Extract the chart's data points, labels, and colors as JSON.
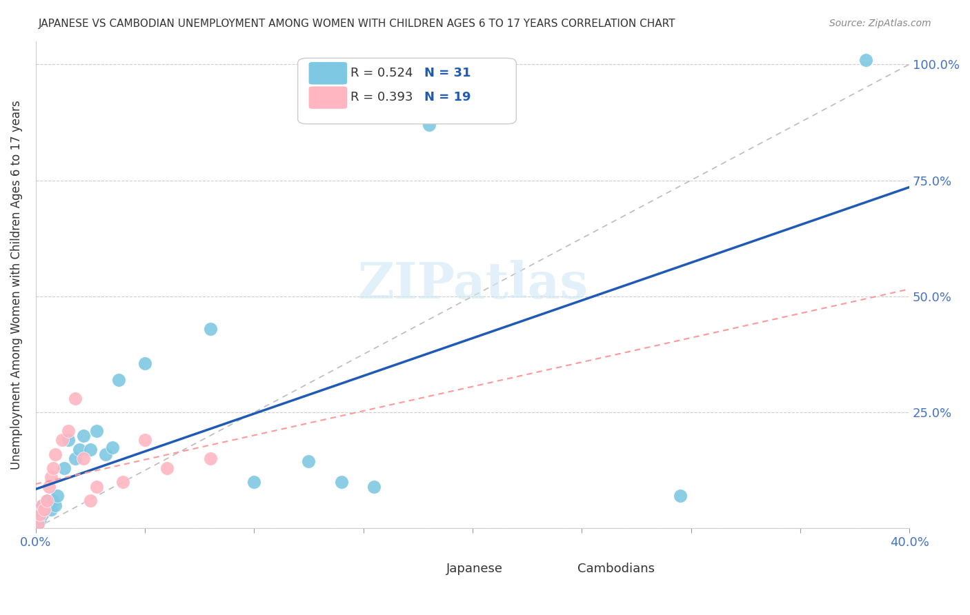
{
  "title": "JAPANESE VS CAMBODIAN UNEMPLOYMENT AMONG WOMEN WITH CHILDREN AGES 6 TO 17 YEARS CORRELATION CHART",
  "source": "Source: ZipAtlas.com",
  "xlabel_bottom": "",
  "ylabel": "Unemployment Among Women with Children Ages 6 to 17 years",
  "x_ticks": [
    0.0,
    0.05,
    0.1,
    0.15,
    0.2,
    0.25,
    0.3,
    0.35,
    0.4
  ],
  "x_tick_labels": [
    "0.0%",
    "",
    "",
    "",
    "",
    "",
    "",
    "",
    "40.0%"
  ],
  "y_ticks_right": [
    0.0,
    0.25,
    0.5,
    0.75,
    1.0
  ],
  "y_tick_labels_right": [
    "",
    "25.0%",
    "50.0%",
    "75.0%",
    "100.0%"
  ],
  "xlim": [
    0.0,
    0.4
  ],
  "ylim": [
    0.0,
    1.05
  ],
  "legend_r1": "R = 0.524",
  "legend_n1": "N = 31",
  "legend_r2": "R = 0.393",
  "legend_n2": "N = 19",
  "japanese_color": "#7EC8E3",
  "cambodian_color": "#FFB6C1",
  "japanese_color_dark": "#4472C4",
  "cambodian_color_dark": "#FF69B4",
  "trendline_blue": "#1F5BB5",
  "trendline_pink": "#FF9999",
  "watermark": "ZIPatlas",
  "japanese_x": [
    0.001,
    0.002,
    0.002,
    0.003,
    0.003,
    0.004,
    0.004,
    0.005,
    0.006,
    0.007,
    0.008,
    0.009,
    0.012,
    0.015,
    0.018,
    0.02,
    0.022,
    0.025,
    0.028,
    0.03,
    0.032,
    0.035,
    0.05,
    0.08,
    0.1,
    0.12,
    0.14,
    0.16,
    0.18,
    0.3,
    0.38
  ],
  "japanese_y": [
    0.01,
    0.02,
    0.03,
    0.04,
    0.02,
    0.05,
    0.03,
    0.06,
    0.05,
    0.04,
    0.06,
    0.05,
    0.12,
    0.18,
    0.14,
    0.16,
    0.19,
    0.17,
    0.2,
    0.17,
    0.15,
    0.3,
    0.35,
    0.42,
    0.1,
    0.14,
    0.1,
    0.09,
    0.85,
    0.07,
    1.01
  ],
  "cambodian_x": [
    0.001,
    0.002,
    0.003,
    0.004,
    0.005,
    0.006,
    0.007,
    0.008,
    0.009,
    0.012,
    0.015,
    0.018,
    0.022,
    0.025,
    0.028,
    0.04,
    0.05,
    0.06,
    0.08
  ],
  "cambodian_y": [
    0.01,
    0.03,
    0.05,
    0.04,
    0.06,
    0.08,
    0.1,
    0.12,
    0.15,
    0.18,
    0.2,
    0.27,
    0.15,
    0.05,
    0.08,
    0.09,
    0.18,
    0.12,
    0.14
  ]
}
